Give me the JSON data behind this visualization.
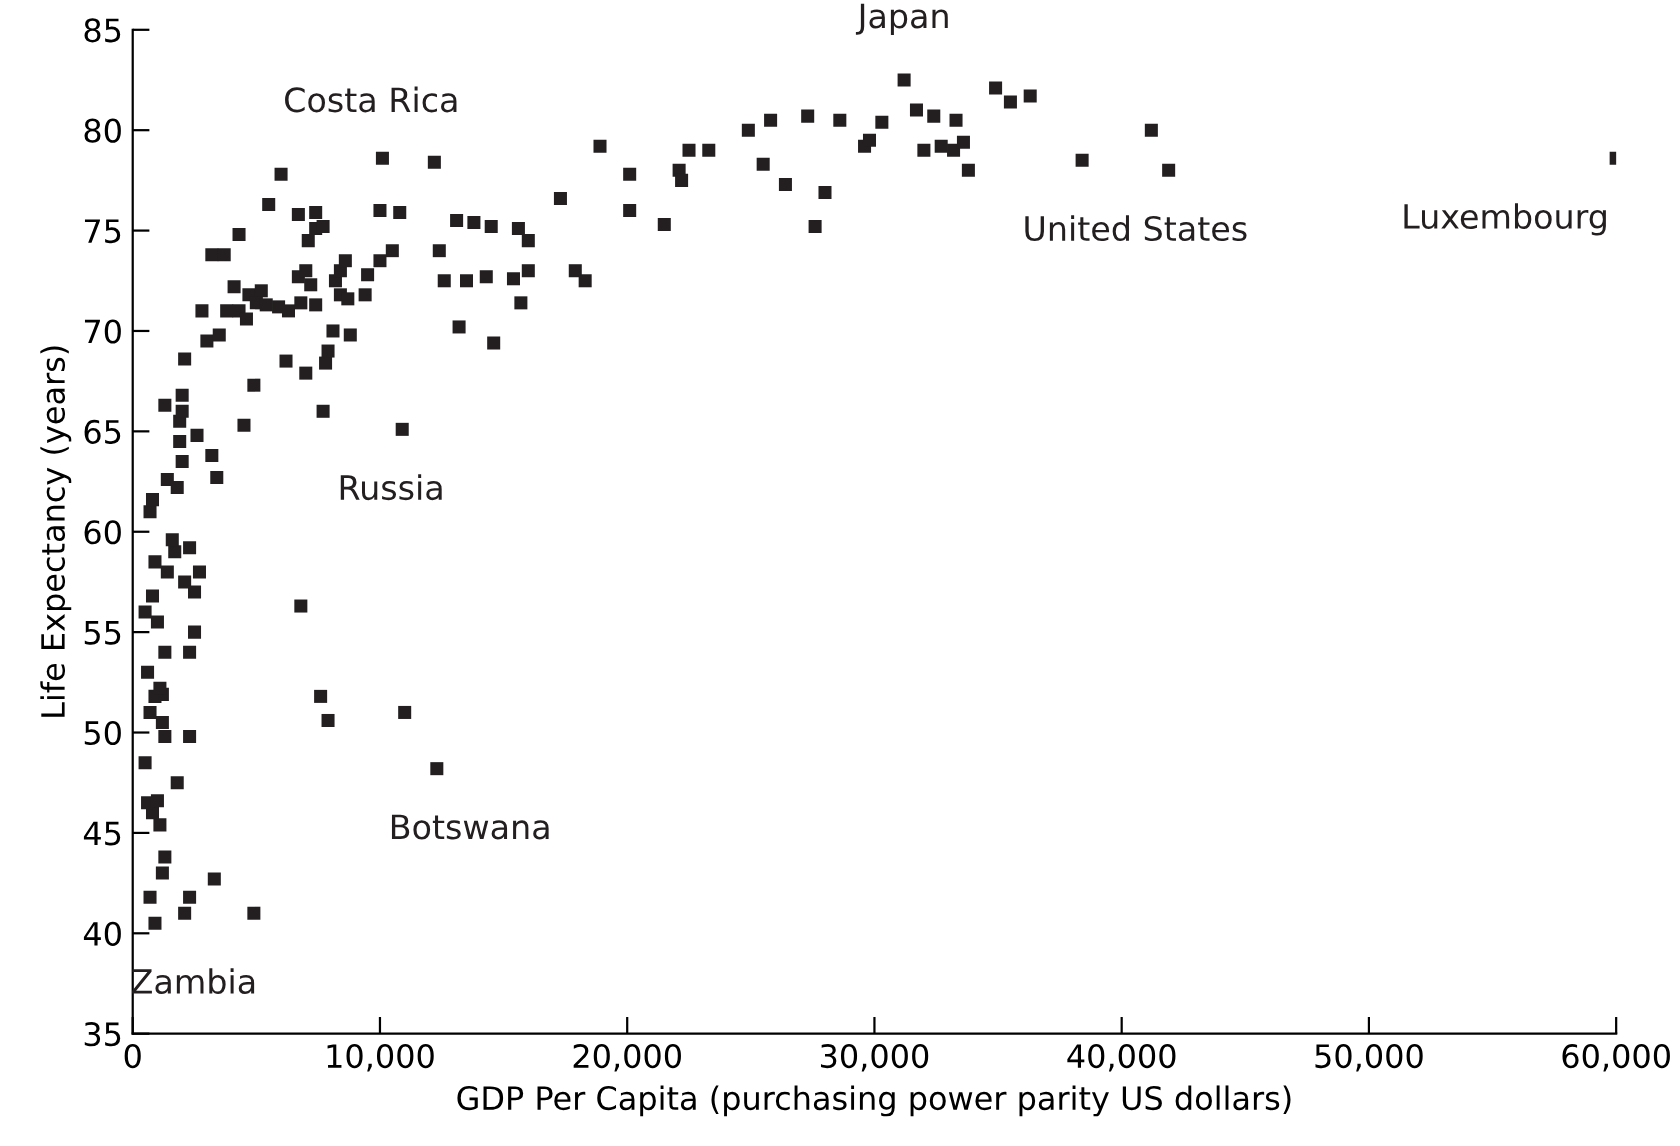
{
  "chart_data": {
    "type": "scatter",
    "xlabel": "GDP Per Capita (purchasing power parity US dollars)",
    "ylabel": "Life Expectancy (years)",
    "marker": "square",
    "grid": false,
    "xlim": [
      0,
      60000
    ],
    "ylim": [
      35,
      85
    ],
    "xticks": [
      {
        "value": 0,
        "label": "0"
      },
      {
        "value": 10000,
        "label": "10,000"
      },
      {
        "value": 20000,
        "label": "20,000"
      },
      {
        "value": 30000,
        "label": "30,000"
      },
      {
        "value": 40000,
        "label": "40,000"
      },
      {
        "value": 50000,
        "label": "50,000"
      },
      {
        "value": 60000,
        "label": "60,000"
      }
    ],
    "yticks": [
      35,
      40,
      45,
      50,
      55,
      60,
      65,
      70,
      75,
      80,
      85
    ],
    "annotations": [
      {
        "text": "Costa Rica",
        "x": 10100,
        "y": 78.6
      },
      {
        "text": "Japan",
        "x": 31200,
        "y": 82.5
      },
      {
        "text": "United States",
        "x": 41900,
        "y": 78.0
      },
      {
        "text": "Luxembourg",
        "x": 60000,
        "y": 78.6
      },
      {
        "text": "Russia",
        "x": 10900,
        "y": 65.1
      },
      {
        "text": "Botswana",
        "x": 12300,
        "y": 48.2
      },
      {
        "text": "Zambia",
        "x": 900,
        "y": 40.5
      }
    ],
    "series": [
      {
        "color": "#231f20",
        "x": [
          900,
          700,
          2100,
          2300,
          3300,
          4900,
          1200,
          1300,
          1100,
          800,
          600,
          1000,
          500,
          1800,
          2300,
          1300,
          1200,
          700,
          900,
          1200,
          1100,
          600,
          1300,
          2300,
          2500,
          1000,
          500,
          800,
          2500,
          2700,
          1400,
          2100,
          1700,
          2300,
          1600,
          900,
          700,
          800,
          1400,
          1800,
          3400,
          2000,
          3200,
          1900,
          2600,
          1900,
          2000,
          1300,
          2000,
          2100,
          4500,
          4900,
          6200,
          7000,
          7800,
          7900,
          8800,
          3000,
          3500,
          2800,
          3800,
          3200,
          3700,
          4300,
          5500,
          6000,
          4100,
          4700,
          5200,
          5900,
          4300,
          4600,
          5000,
          5400,
          6300,
          6800,
          6700,
          7000,
          7200,
          7400,
          7100,
          7400,
          6700,
          7400,
          7700,
          8200,
          8400,
          8600,
          8400,
          8700,
          9500,
          9400,
          8100,
          7700,
          6800,
          7600,
          7900,
          11000,
          12300,
          10900,
          10000,
          10800,
          10100,
          12200,
          10000,
          10500,
          12400,
          12600,
          13100,
          13800,
          14500,
          15600,
          16000,
          13200,
          14600,
          13500,
          14300,
          15400,
          15700,
          16000,
          17300,
          17900,
          18300,
          18900,
          20100,
          20100,
          21500,
          22100,
          22200,
          22500,
          23300,
          24900,
          25500,
          25800,
          26400,
          27300,
          27600,
          28000,
          28600,
          29600,
          29800,
          30300,
          31200,
          31700,
          32400,
          33300,
          32000,
          32700,
          33200,
          33600,
          33800,
          34900,
          35500,
          36300,
          38400,
          41200,
          41900,
          60000
        ],
        "values": [
          40.5,
          41.8,
          41.0,
          41.8,
          42.7,
          41.0,
          43.0,
          43.8,
          45.4,
          46.0,
          46.5,
          46.6,
          48.5,
          47.5,
          49.8,
          49.8,
          50.5,
          51.0,
          51.8,
          51.9,
          52.2,
          53.0,
          54.0,
          54.0,
          55.0,
          55.5,
          56.0,
          56.8,
          57.0,
          58.0,
          58.0,
          57.5,
          59.0,
          59.2,
          59.6,
          58.5,
          61.0,
          61.6,
          62.6,
          62.2,
          62.7,
          63.5,
          63.8,
          64.5,
          64.8,
          65.5,
          66.0,
          66.3,
          66.8,
          68.6,
          65.3,
          67.3,
          68.5,
          67.9,
          68.4,
          69.0,
          69.8,
          69.5,
          69.8,
          71.0,
          71.0,
          73.8,
          73.8,
          74.8,
          76.3,
          77.8,
          72.2,
          71.8,
          72.0,
          71.2,
          71.0,
          70.6,
          71.4,
          71.3,
          71.0,
          71.4,
          72.7,
          73.0,
          72.3,
          71.3,
          74.5,
          75.1,
          75.8,
          75.9,
          75.2,
          72.5,
          73.0,
          73.5,
          71.8,
          71.6,
          72.8,
          71.8,
          70.0,
          66.0,
          56.3,
          51.8,
          50.6,
          51.0,
          48.2,
          65.1,
          76.0,
          75.9,
          78.6,
          78.4,
          73.5,
          74.0,
          74.0,
          72.5,
          75.5,
          75.4,
          75.2,
          75.1,
          74.5,
          70.2,
          69.4,
          72.5,
          72.7,
          72.6,
          71.4,
          73.0,
          76.6,
          73.0,
          72.5,
          79.2,
          77.8,
          76.0,
          75.3,
          78.0,
          77.5,
          79.0,
          79.0,
          80.0,
          78.3,
          80.5,
          77.3,
          80.7,
          75.2,
          76.9,
          80.5,
          79.2,
          79.5,
          80.4,
          82.5,
          81.0,
          80.7,
          80.5,
          79.0,
          79.2,
          79.0,
          79.4,
          78.0,
          82.1,
          81.4,
          81.7,
          78.5,
          80.0,
          78.0,
          78.6
        ]
      }
    ]
  }
}
